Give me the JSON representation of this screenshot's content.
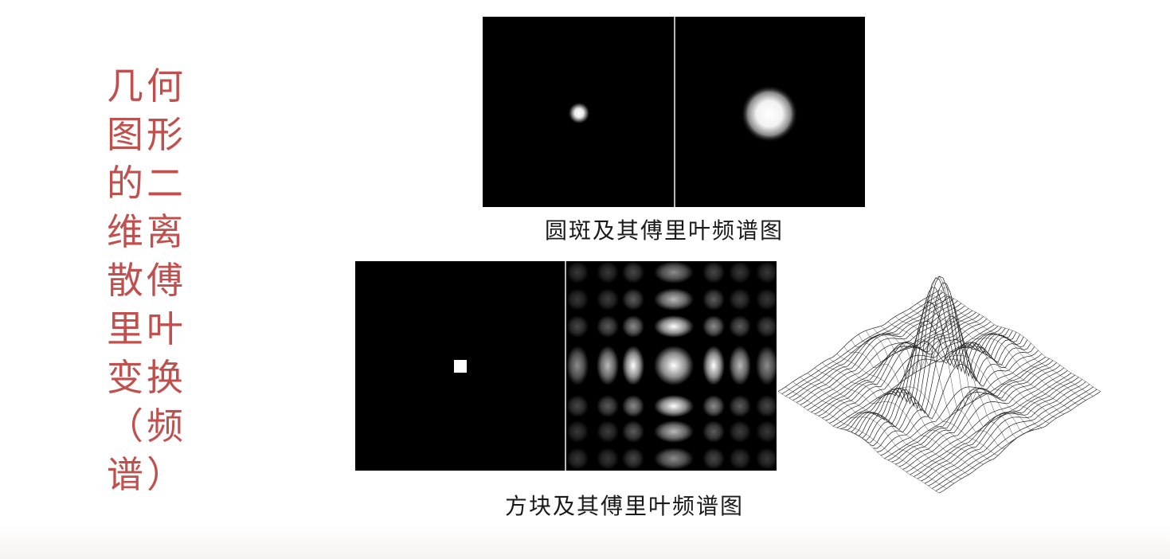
{
  "title": "几何图形的二维离散傅里叶变换（频谱）",
  "figures": [
    {
      "id": "circle-spot",
      "caption": "圆斑及其傅里叶频谱图",
      "image_description": "circular spot and its fourier spectrum"
    },
    {
      "id": "square-block",
      "caption": "方块及其傅里叶频谱图",
      "image_description": "square block, its fourier spectrum and 3D surface plot"
    }
  ],
  "colors": {
    "title": "#c0504d",
    "panel_bg": "#000000",
    "divider": "#b8b8b8"
  }
}
